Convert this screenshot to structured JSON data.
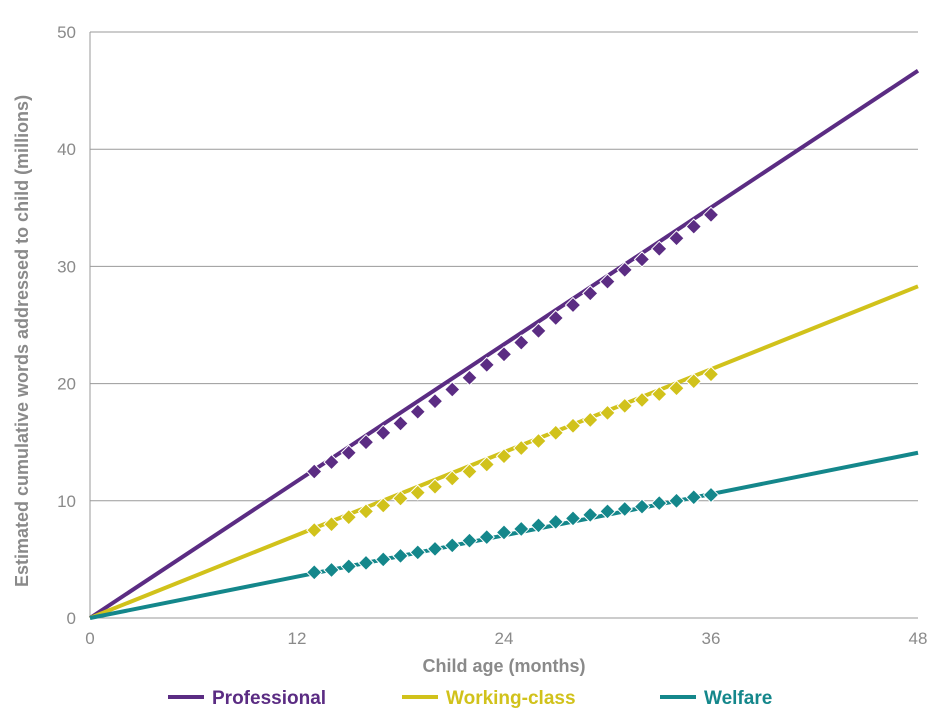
{
  "chart_data": {
    "type": "line",
    "xlabel": "Child age (months)",
    "ylabel": "Estimated cumulative words addressed to child (millions)",
    "xlim": [
      0,
      48
    ],
    "ylim": [
      0,
      50
    ],
    "x_ticks": [
      0,
      12,
      24,
      36,
      48
    ],
    "y_ticks": [
      0,
      10,
      20,
      30,
      40,
      50
    ],
    "grid": "horizontal",
    "legend_position": "bottom",
    "series": [
      {
        "name": "Professional",
        "color": "#5b2c83",
        "line": [
          [
            0,
            0
          ],
          [
            48,
            46.7
          ]
        ],
        "points": [
          [
            13,
            12.5
          ],
          [
            14,
            13.3
          ],
          [
            15,
            14.1
          ],
          [
            16,
            15.0
          ],
          [
            17,
            15.8
          ],
          [
            18,
            16.6
          ],
          [
            19,
            17.6
          ],
          [
            20,
            18.5
          ],
          [
            21,
            19.5
          ],
          [
            22,
            20.5
          ],
          [
            23,
            21.6
          ],
          [
            24,
            22.5
          ],
          [
            25,
            23.5
          ],
          [
            26,
            24.5
          ],
          [
            27,
            25.6
          ],
          [
            28,
            26.7
          ],
          [
            29,
            27.7
          ],
          [
            30,
            28.7
          ],
          [
            31,
            29.7
          ],
          [
            32,
            30.6
          ],
          [
            33,
            31.5
          ],
          [
            34,
            32.4
          ],
          [
            35,
            33.4
          ],
          [
            36,
            34.4
          ]
        ]
      },
      {
        "name": "Working-class",
        "color": "#d1c21b",
        "line": [
          [
            0,
            0
          ],
          [
            48,
            28.3
          ]
        ],
        "points": [
          [
            13,
            7.5
          ],
          [
            14,
            8.0
          ],
          [
            15,
            8.6
          ],
          [
            16,
            9.1
          ],
          [
            17,
            9.6
          ],
          [
            18,
            10.2
          ],
          [
            19,
            10.7
          ],
          [
            20,
            11.2
          ],
          [
            21,
            11.9
          ],
          [
            22,
            12.5
          ],
          [
            23,
            13.1
          ],
          [
            24,
            13.8
          ],
          [
            25,
            14.5
          ],
          [
            26,
            15.1
          ],
          [
            27,
            15.8
          ],
          [
            28,
            16.4
          ],
          [
            29,
            16.9
          ],
          [
            30,
            17.5
          ],
          [
            31,
            18.1
          ],
          [
            32,
            18.6
          ],
          [
            33,
            19.1
          ],
          [
            34,
            19.6
          ],
          [
            35,
            20.2
          ],
          [
            36,
            20.8
          ]
        ]
      },
      {
        "name": "Welfare",
        "color": "#14878b",
        "line": [
          [
            0,
            0
          ],
          [
            48,
            14.1
          ]
        ],
        "points": [
          [
            13,
            3.9
          ],
          [
            14,
            4.1
          ],
          [
            15,
            4.4
          ],
          [
            16,
            4.7
          ],
          [
            17,
            5.0
          ],
          [
            18,
            5.3
          ],
          [
            19,
            5.6
          ],
          [
            20,
            5.9
          ],
          [
            21,
            6.2
          ],
          [
            22,
            6.6
          ],
          [
            23,
            6.9
          ],
          [
            24,
            7.3
          ],
          [
            25,
            7.6
          ],
          [
            26,
            7.9
          ],
          [
            27,
            8.2
          ],
          [
            28,
            8.5
          ],
          [
            29,
            8.8
          ],
          [
            30,
            9.1
          ],
          [
            31,
            9.3
          ],
          [
            32,
            9.5
          ],
          [
            33,
            9.8
          ],
          [
            34,
            10.0
          ],
          [
            35,
            10.3
          ],
          [
            36,
            10.5
          ]
        ]
      }
    ]
  }
}
